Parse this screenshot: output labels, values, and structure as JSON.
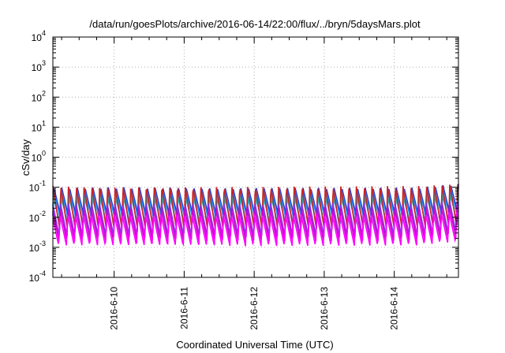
{
  "chart_data": {
    "type": "line",
    "title": "/data/run/goesPlots/archive/2016-06-14/22:00/flux/../bryn/5daysMars.plot",
    "xlabel": "Coordinated Universal Time (UTC)",
    "ylabel": "cSv/day",
    "yscale": "log",
    "ylim_exponents": [
      -4,
      4
    ],
    "y_tick_labels": [
      {
        "base": "10",
        "exp": "4"
      },
      {
        "base": "10",
        "exp": "3"
      },
      {
        "base": "10",
        "exp": "2"
      },
      {
        "base": "10",
        "exp": "1"
      },
      {
        "base": "10",
        "exp": "0"
      },
      {
        "base": "10",
        "exp": "-1"
      },
      {
        "base": "10",
        "exp": "-2"
      },
      {
        "base": "10",
        "exp": "-3"
      },
      {
        "base": "10",
        "exp": "-4"
      }
    ],
    "x_range": [
      "2016-06-09 03:00",
      "2016-06-14 22:00"
    ],
    "x_tick_labels": [
      "2016-6-10",
      "2016-6-11",
      "2016-6-12",
      "2016-6-13",
      "2016-6-14"
    ],
    "grid": true,
    "legend": "none",
    "oscillation": {
      "cycles_per_day": 9,
      "peak_day_fraction_of_cycle": 0.12
    },
    "series": [
      {
        "color": "#2233cc",
        "peak": 0.1,
        "trough": 0.011
      },
      {
        "color": "#1e90ff",
        "peak": 0.085,
        "trough": 0.009
      },
      {
        "color": "#20b2aa",
        "peak": 0.05,
        "trough": 0.006
      },
      {
        "color": "#cc2222",
        "peak": 0.11,
        "trough": 0.004
      },
      {
        "color": "#8a2be2",
        "peak": 0.03,
        "trough": 0.0022
      },
      {
        "color": "#cc00cc",
        "peak": 0.02,
        "trough": 0.0016
      },
      {
        "color": "#ff00ff",
        "peak": 0.013,
        "trough": 0.0011
      }
    ]
  }
}
